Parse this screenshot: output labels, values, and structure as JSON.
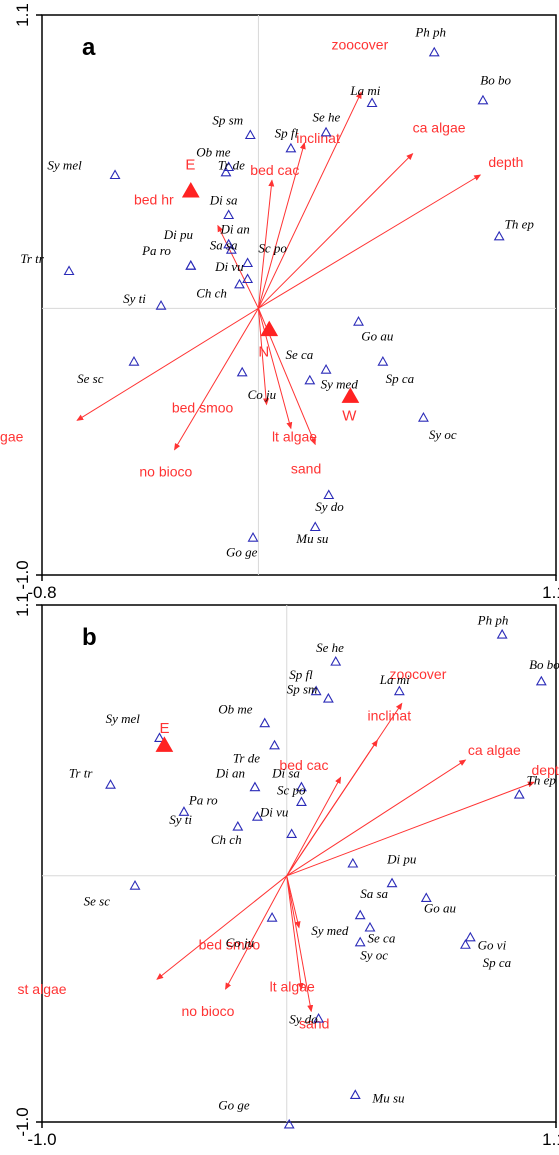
{
  "colors": {
    "env": "#ff3333",
    "species": "#2b2bb8",
    "site": "#ff2222",
    "frame": "#000000",
    "grid": "#d8d8d8"
  },
  "chart_data": [
    {
      "type": "scatter",
      "panel": "a",
      "title": "",
      "xlabel": "",
      "ylabel": "",
      "xlim": [
        -0.8,
        1.1
      ],
      "ylim": [
        -1.0,
        1.1
      ],
      "x_ticks": [
        "-0.8",
        "1.1"
      ],
      "y_ticks": [
        "1.1",
        "-1.0"
      ],
      "grid": false,
      "species": [
        {
          "label": "Ph ph",
          "x": 0.65,
          "y": 0.96,
          "lx": 0.58,
          "ly": 1.02
        },
        {
          "label": "Bo bo",
          "x": 0.83,
          "y": 0.78,
          "lx": 0.82,
          "ly": 0.84
        },
        {
          "label": "La mi",
          "x": 0.42,
          "y": 0.77,
          "lx": 0.34,
          "ly": 0.8
        },
        {
          "label": "Se he",
          "x": 0.25,
          "y": 0.66,
          "lx": 0.2,
          "ly": 0.7
        },
        {
          "label": "Sp sm",
          "x": -0.03,
          "y": 0.65,
          "lx": -0.17,
          "ly": 0.69
        },
        {
          "label": "Sp fl",
          "x": 0.12,
          "y": 0.6,
          "lx": 0.06,
          "ly": 0.64
        },
        {
          "label": "Ob me",
          "x": -0.11,
          "y": 0.53,
          "lx": -0.23,
          "ly": 0.57
        },
        {
          "label": "Tr de",
          "x": -0.12,
          "y": 0.51,
          "lx": -0.15,
          "ly": 0.52
        },
        {
          "label": "Sy mel",
          "x": -0.53,
          "y": 0.5,
          "lx": -0.78,
          "ly": 0.52
        },
        {
          "label": "Di sa",
          "x": -0.11,
          "y": 0.35,
          "lx": -0.18,
          "ly": 0.39
        },
        {
          "label": "Di an",
          "x": -0.11,
          "y": 0.24,
          "lx": -0.14,
          "ly": 0.28
        },
        {
          "label": "Sa sa",
          "x": -0.1,
          "y": 0.22,
          "lx": -0.18,
          "ly": 0.22
        },
        {
          "label": "Sc po",
          "x": -0.04,
          "y": 0.17,
          "lx": 0.0,
          "ly": 0.21
        },
        {
          "label": "Di pu",
          "x": -0.25,
          "y": 0.16,
          "lx": -0.35,
          "ly": 0.26
        },
        {
          "label": "Pa ro",
          "x": -0.25,
          "y": 0.16,
          "lx": -0.43,
          "ly": 0.2
        },
        {
          "label": "Di vu",
          "x": -0.04,
          "y": 0.11,
          "lx": -0.16,
          "ly": 0.14
        },
        {
          "label": "Ch ch",
          "x": -0.07,
          "y": 0.09,
          "lx": -0.23,
          "ly": 0.04
        },
        {
          "label": "Tr tr",
          "x": -0.7,
          "y": 0.14,
          "lx": -0.88,
          "ly": 0.17
        },
        {
          "label": "Sy ti",
          "x": -0.36,
          "y": 0.01,
          "lx": -0.5,
          "ly": 0.02
        },
        {
          "label": "Th ep",
          "x": 0.89,
          "y": 0.27,
          "lx": 0.91,
          "ly": 0.3
        },
        {
          "label": "Se sc",
          "x": -0.46,
          "y": -0.2,
          "lx": -0.67,
          "ly": -0.28
        },
        {
          "label": "Go au",
          "x": 0.37,
          "y": -0.05,
          "lx": 0.38,
          "ly": -0.12
        },
        {
          "label": "Sp ca",
          "x": 0.46,
          "y": -0.2,
          "lx": 0.47,
          "ly": -0.28
        },
        {
          "label": "Se ca",
          "x": 0.25,
          "y": -0.23,
          "lx": 0.1,
          "ly": -0.19
        },
        {
          "label": "Sy med",
          "x": 0.19,
          "y": -0.27,
          "lx": 0.23,
          "ly": -0.3
        },
        {
          "label": "Co ju",
          "x": -0.06,
          "y": -0.24,
          "lx": -0.04,
          "ly": -0.34
        },
        {
          "label": "Sy oc",
          "x": 0.61,
          "y": -0.41,
          "lx": 0.63,
          "ly": -0.49
        },
        {
          "label": "Sy do",
          "x": 0.26,
          "y": -0.7,
          "lx": 0.21,
          "ly": -0.76
        },
        {
          "label": "Mu su",
          "x": 0.21,
          "y": -0.82,
          "lx": 0.14,
          "ly": -0.88
        },
        {
          "label": "Go ge",
          "x": -0.02,
          "y": -0.86,
          "lx": -0.12,
          "ly": -0.93
        }
      ],
      "env_arrows": [
        {
          "label": "zoocover",
          "x": 0.38,
          "y": 0.81,
          "lx": 0.27,
          "ly": 0.97
        },
        {
          "label": "inclinat",
          "x": 0.17,
          "y": 0.62,
          "lx": 0.14,
          "ly": 0.62
        },
        {
          "label": "ca algae",
          "x": 0.57,
          "y": 0.58,
          "lx": 0.57,
          "ly": 0.66
        },
        {
          "label": "depth",
          "x": 0.82,
          "y": 0.5,
          "lx": 0.85,
          "ly": 0.53
        },
        {
          "label": "bed cac",
          "x": 0.05,
          "y": 0.48,
          "lx": -0.03,
          "ly": 0.5
        },
        {
          "label": "bed hr",
          "x": -0.15,
          "y": 0.31,
          "lx": -0.46,
          "ly": 0.39
        },
        {
          "label": "bed smoo",
          "x": 0.03,
          "y": -0.36,
          "lx": -0.32,
          "ly": -0.39
        },
        {
          "label": "lt algae",
          "x": 0.12,
          "y": -0.45,
          "lx": 0.05,
          "ly": -0.5
        },
        {
          "label": "sand",
          "x": 0.21,
          "y": -0.51,
          "lx": 0.12,
          "ly": -0.62
        },
        {
          "label": "st algae",
          "x": -0.67,
          "y": -0.42,
          "lx": -1.05,
          "ly": -0.5
        },
        {
          "label": "no bioco",
          "x": -0.31,
          "y": -0.53,
          "lx": -0.44,
          "ly": -0.63
        }
      ],
      "sites": [
        {
          "label": "E",
          "x": -0.25,
          "y": 0.44,
          "lx": -0.27,
          "ly": 0.52
        },
        {
          "label": "N",
          "x": 0.04,
          "y": -0.08,
          "lx": 0.0,
          "ly": -0.18
        },
        {
          "label": "W",
          "x": 0.34,
          "y": -0.33,
          "lx": 0.31,
          "ly": -0.42
        }
      ]
    },
    {
      "type": "scatter",
      "panel": "b",
      "title": "",
      "xlabel": "",
      "ylabel": "",
      "xlim": [
        -1.0,
        1.1
      ],
      "ylim": [
        -1.0,
        1.1
      ],
      "x_ticks": [
        "-1.0",
        "1.1"
      ],
      "y_ticks": [
        "1.1",
        "-1.0"
      ],
      "grid": false,
      "species": [
        {
          "label": "Ph ph",
          "x": 0.88,
          "y": 0.98,
          "lx": 0.78,
          "ly": 1.02
        },
        {
          "label": "Bo bo",
          "x": 1.04,
          "y": 0.79,
          "lx": 0.99,
          "ly": 0.84
        },
        {
          "label": "La mi",
          "x": 0.46,
          "y": 0.75,
          "lx": 0.38,
          "ly": 0.78
        },
        {
          "label": "Se he",
          "x": 0.2,
          "y": 0.87,
          "lx": 0.12,
          "ly": 0.91
        },
        {
          "label": "Sp fl",
          "x": 0.12,
          "y": 0.75,
          "lx": 0.01,
          "ly": 0.8
        },
        {
          "label": "Sp sm",
          "x": 0.17,
          "y": 0.72,
          "lx": 0.0,
          "ly": 0.74
        },
        {
          "label": "Ob me",
          "x": -0.09,
          "y": 0.62,
          "lx": -0.28,
          "ly": 0.66
        },
        {
          "label": "Sy mel",
          "x": -0.52,
          "y": 0.56,
          "lx": -0.74,
          "ly": 0.62
        },
        {
          "label": "Tr de",
          "x": -0.05,
          "y": 0.53,
          "lx": -0.22,
          "ly": 0.46
        },
        {
          "label": "Di an",
          "x": -0.13,
          "y": 0.36,
          "lx": -0.29,
          "ly": 0.4
        },
        {
          "label": "Di sa",
          "x": 0.06,
          "y": 0.36,
          "lx": -0.06,
          "ly": 0.4
        },
        {
          "label": "Sc po",
          "x": 0.06,
          "y": 0.3,
          "lx": -0.04,
          "ly": 0.33
        },
        {
          "label": "Pa ro",
          "x": -0.42,
          "y": 0.26,
          "lx": -0.4,
          "ly": 0.29
        },
        {
          "label": "Di vu",
          "x": -0.12,
          "y": 0.24,
          "lx": -0.11,
          "ly": 0.24
        },
        {
          "label": "Sy ti",
          "x": -0.2,
          "y": 0.2,
          "lx": -0.48,
          "ly": 0.21
        },
        {
          "label": "Ch ch",
          "x": 0.02,
          "y": 0.17,
          "lx": -0.31,
          "ly": 0.13
        },
        {
          "label": "Tr tr",
          "x": -0.72,
          "y": 0.37,
          "lx": -0.89,
          "ly": 0.4
        },
        {
          "label": "Th ep",
          "x": 0.95,
          "y": 0.33,
          "lx": 0.98,
          "ly": 0.37
        },
        {
          "label": "Di pu",
          "x": 0.27,
          "y": 0.05,
          "lx": 0.41,
          "ly": 0.05
        },
        {
          "label": "Sa sa",
          "x": 0.43,
          "y": -0.03,
          "lx": 0.3,
          "ly": -0.09
        },
        {
          "label": "Go au",
          "x": 0.57,
          "y": -0.09,
          "lx": 0.56,
          "ly": -0.15
        },
        {
          "label": "Se sc",
          "x": -0.62,
          "y": -0.04,
          "lx": -0.83,
          "ly": -0.12
        },
        {
          "label": "Sy med",
          "x": 0.3,
          "y": -0.16,
          "lx": 0.1,
          "ly": -0.24
        },
        {
          "label": "Se ca",
          "x": 0.34,
          "y": -0.21,
          "lx": 0.33,
          "ly": -0.27
        },
        {
          "label": "Sy oc",
          "x": 0.3,
          "y": -0.27,
          "lx": 0.3,
          "ly": -0.34
        },
        {
          "label": "Go vi",
          "x": 0.75,
          "y": -0.25,
          "lx": 0.78,
          "ly": -0.3
        },
        {
          "label": "Sp ca",
          "x": 0.73,
          "y": -0.28,
          "lx": 0.8,
          "ly": -0.37
        },
        {
          "label": "Co ju",
          "x": -0.06,
          "y": -0.17,
          "lx": -0.25,
          "ly": -0.29
        },
        {
          "label": "Sy do",
          "x": 0.13,
          "y": -0.58,
          "lx": 0.01,
          "ly": -0.6
        },
        {
          "label": "Mu su",
          "x": 0.28,
          "y": -0.89,
          "lx": 0.35,
          "ly": -0.92
        },
        {
          "label": "Go ge",
          "x": 0.01,
          "y": -1.01,
          "lx": -0.28,
          "ly": -0.95
        }
      ],
      "env_arrows": [
        {
          "label": "zoocover",
          "x": 0.47,
          "y": 0.7,
          "lx": 0.42,
          "ly": 0.8
        },
        {
          "label": "inclinat",
          "x": 0.37,
          "y": 0.55,
          "lx": 0.33,
          "ly": 0.63
        },
        {
          "label": "ca algae",
          "x": 0.73,
          "y": 0.47,
          "lx": 0.74,
          "ly": 0.49
        },
        {
          "label": "depth",
          "x": 1.01,
          "y": 0.38,
          "lx": 1.0,
          "ly": 0.41
        },
        {
          "label": "bed cac",
          "x": 0.22,
          "y": 0.4,
          "lx": -0.03,
          "ly": 0.43
        },
        {
          "label": "bed smoo",
          "x": 0.05,
          "y": -0.21,
          "lx": -0.36,
          "ly": -0.3
        },
        {
          "label": "lt algae",
          "x": 0.06,
          "y": -0.46,
          "lx": -0.07,
          "ly": -0.47
        },
        {
          "label": "sand",
          "x": 0.1,
          "y": -0.55,
          "lx": 0.05,
          "ly": -0.62
        },
        {
          "label": "st algae",
          "x": -0.53,
          "y": -0.42,
          "lx": -1.1,
          "ly": -0.48
        },
        {
          "label": "no bioco",
          "x": -0.25,
          "y": -0.46,
          "lx": -0.43,
          "ly": -0.57
        }
      ],
      "sites": [
        {
          "label": "E",
          "x": -0.5,
          "y": 0.53,
          "lx": -0.52,
          "ly": 0.58
        }
      ]
    }
  ]
}
